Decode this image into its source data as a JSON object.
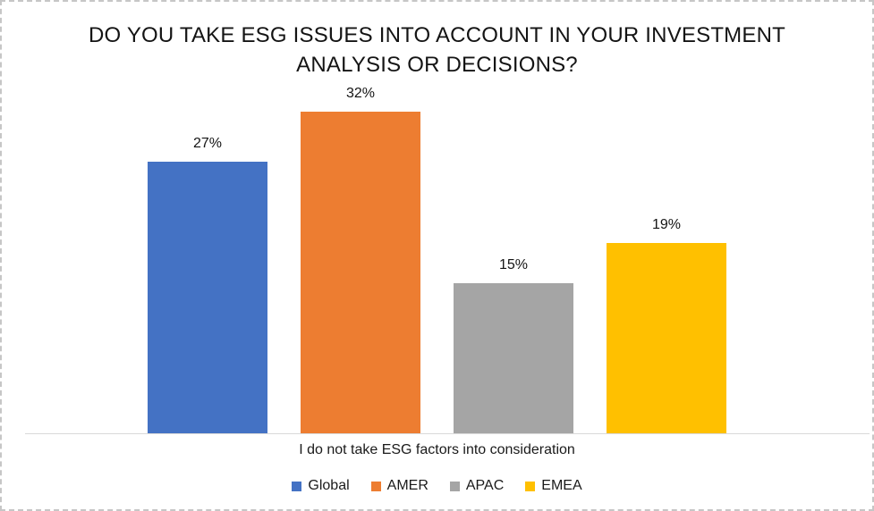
{
  "chart_data": {
    "type": "bar",
    "title": "DO YOU TAKE ESG ISSUES INTO ACCOUNT IN YOUR INVESTMENT ANALYSIS OR DECISIONS?",
    "categories": [
      "I do not take ESG factors into consideration"
    ],
    "series": [
      {
        "name": "Global",
        "values": [
          27
        ],
        "color": "#4472C4"
      },
      {
        "name": "AMER",
        "values": [
          32
        ],
        "color": "#ED7D31"
      },
      {
        "name": "APAC",
        "values": [
          15
        ],
        "color": "#A5A5A5"
      },
      {
        "name": "EMEA",
        "values": [
          19
        ],
        "color": "#FFC000"
      }
    ],
    "data_labels": [
      "27%",
      "32%",
      "15%",
      "19%"
    ],
    "value_unit": "%",
    "ylim": [
      0,
      35
    ],
    "grid": false,
    "axis_line_color": "#D9D9D9",
    "legend_position": "bottom",
    "legend": [
      "Global",
      "AMER",
      "APAC",
      "EMEA"
    ]
  }
}
